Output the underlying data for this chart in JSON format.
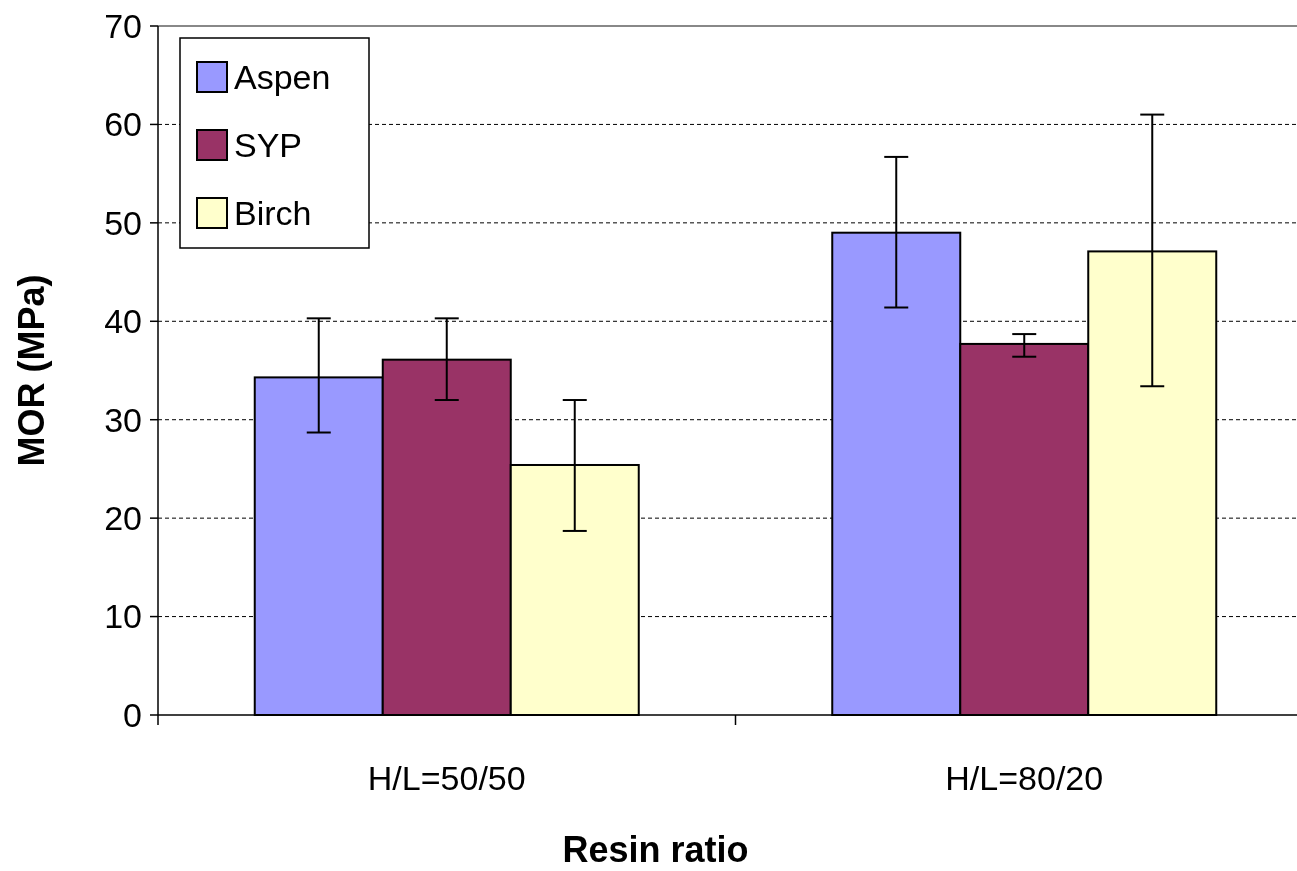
{
  "chart_data": {
    "type": "bar",
    "xlabel": "Resin ratio",
    "ylabel": "MOR (MPa)",
    "categories": [
      "H/L=50/50",
      "H/L=80/20"
    ],
    "series": [
      {
        "name": "Aspen",
        "color": "#9999ff",
        "values": [
          34.3,
          49.0
        ],
        "errors": [
          [
            28.7,
            40.3
          ],
          [
            41.4,
            56.7
          ]
        ]
      },
      {
        "name": "SYP",
        "color": "#993366",
        "values": [
          36.1,
          37.7
        ],
        "errors": [
          [
            32.0,
            40.3
          ],
          [
            36.4,
            38.7
          ]
        ]
      },
      {
        "name": "Birch",
        "color": "#ffffcc",
        "values": [
          25.4,
          47.1
        ],
        "errors": [
          [
            18.7,
            32.0
          ],
          [
            33.4,
            61.0
          ]
        ]
      }
    ],
    "ylim": [
      0,
      70
    ],
    "yticks": [
      0,
      10,
      20,
      30,
      40,
      50,
      60,
      70
    ],
    "grid": "y",
    "legend": "top left"
  }
}
